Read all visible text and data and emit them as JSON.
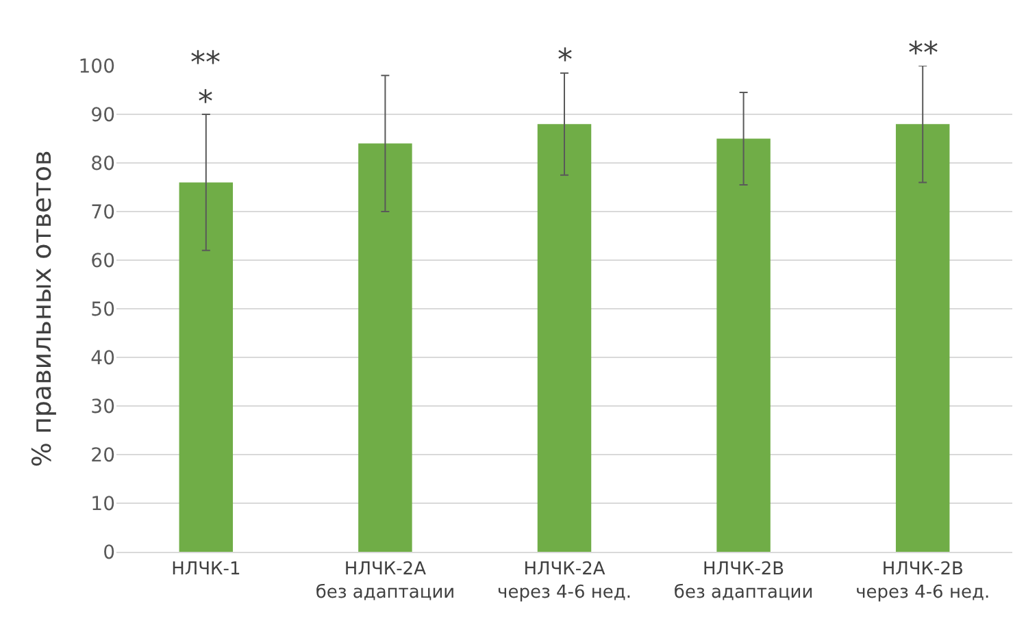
{
  "chart_data": {
    "type": "bar",
    "ylabel": "% правильных ответов",
    "categories": [
      "НЛЧК-1",
      "НЛЧК-2A\nбез адаптации",
      "НЛЧК-2A\nчерез 4-6 нед.",
      "НЛЧК-2B\nбез адаптации",
      "НЛЧК-2B\nчерез 4-6 нед."
    ],
    "values": [
      76,
      84,
      88,
      85,
      88
    ],
    "errors": [
      14,
      14,
      10.5,
      9.5,
      12
    ],
    "color": "#70ad47",
    "ylim": [
      0,
      100
    ],
    "yticks": [
      0,
      10,
      20,
      30,
      40,
      50,
      60,
      70,
      80,
      90,
      100
    ],
    "grid": "y",
    "annotations": [
      {
        "text": "**\n*",
        "x": "НЛЧК-1",
        "y": 90
      },
      {
        "text": "*",
        "x": "НЛЧК-2A\nчерез 4-6 нед.",
        "y": 98.5
      },
      {
        "text": "**",
        "x": "НЛЧК-2B\nчерез 4-6 нед.",
        "y": 100
      }
    ]
  }
}
